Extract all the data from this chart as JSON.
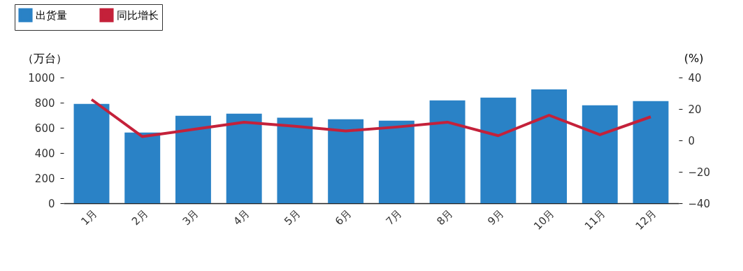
{
  "chart_data": {
    "type": "bar",
    "ylabel": "（万台）",
    "y2label": "(%)",
    "categories": [
      "1月",
      "2月",
      "3月",
      "4月",
      "5月",
      "6月",
      "7月",
      "8月",
      "9月",
      "10月",
      "11月",
      "12月"
    ],
    "series": [
      {
        "name": "出货量",
        "color": "#2a82c6",
        "values": [
          790,
          563,
          696,
          713,
          680,
          668,
          657,
          818,
          840,
          906,
          779,
          812
        ]
      },
      {
        "name": "同比增长",
        "type": "line",
        "axis": "y2",
        "color": "#c4213a",
        "values": [
          26,
          2.4,
          7,
          11.6,
          9,
          6,
          8.5,
          11.6,
          3,
          16,
          3.6,
          15
        ]
      }
    ],
    "ylim": [
      0,
      1000
    ],
    "yticks": [
      0,
      200,
      400,
      600,
      800,
      1000
    ],
    "y2lim": [
      -40,
      40
    ],
    "y2ticks": [
      {
        "value": -40,
        "label": "−40"
      },
      {
        "value": -20,
        "label": "−20"
      },
      0,
      20,
      40
    ],
    "legend": "top left",
    "grid": false,
    "marker": "none",
    "line_style": "solid"
  }
}
